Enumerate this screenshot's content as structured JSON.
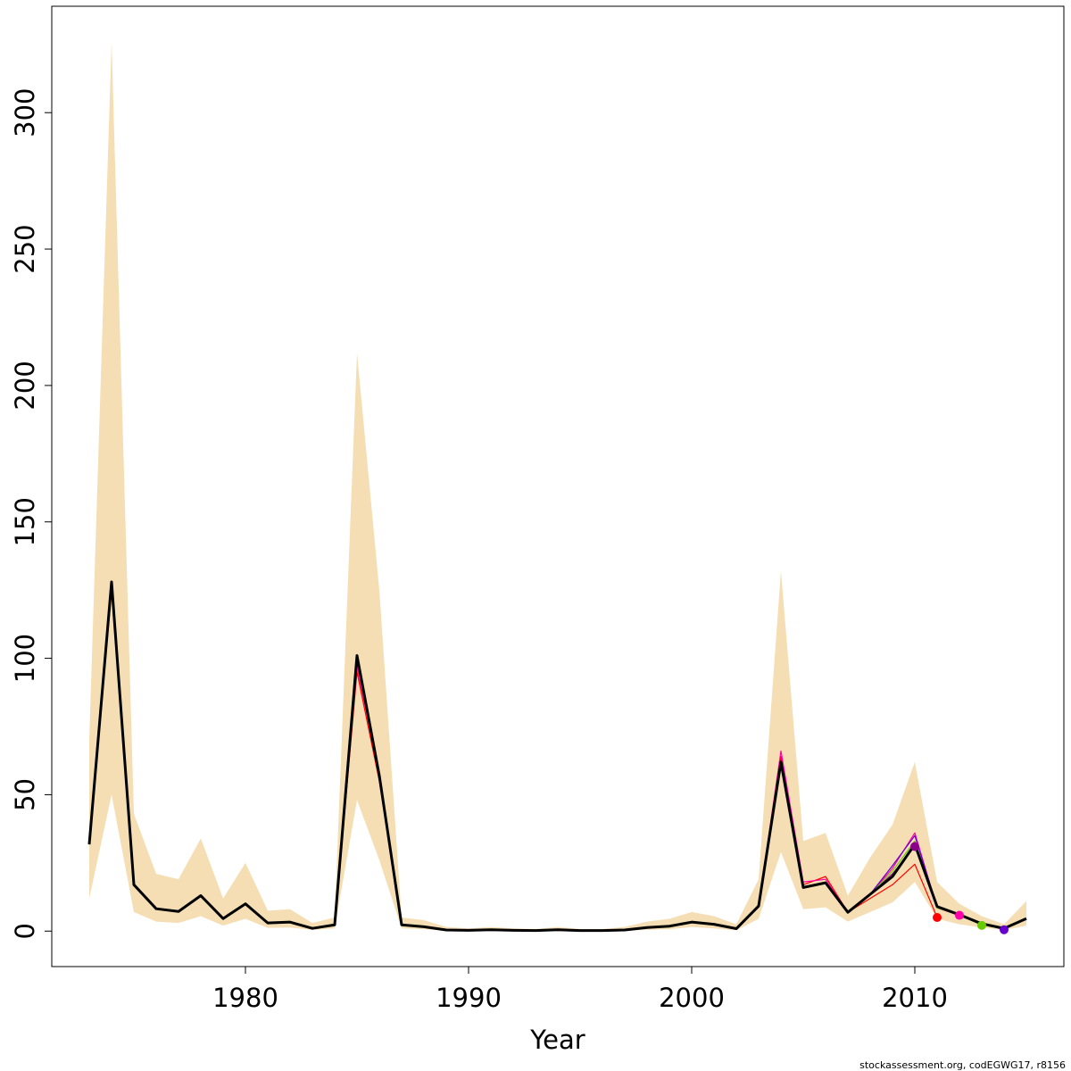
{
  "chart_data": {
    "type": "line",
    "x_label": "Year",
    "footer": "stockassessment.org, codEGWG17, r8156",
    "x": [
      1973,
      1974,
      1975,
      1976,
      1977,
      1978,
      1979,
      1980,
      1981,
      1982,
      1983,
      1984,
      1985,
      1986,
      1987,
      1988,
      1989,
      1990,
      1991,
      1992,
      1993,
      1994,
      1995,
      1996,
      1997,
      1998,
      1999,
      2000,
      2001,
      2002,
      2003,
      2004,
      2005,
      2006,
      2007,
      2008,
      2009,
      2010,
      2011,
      2012,
      2013,
      2014,
      2015
    ],
    "band": {
      "color": "#f5deb3",
      "upper": [
        70,
        326,
        43,
        21,
        19,
        34,
        12,
        25,
        7.5,
        8,
        3,
        5,
        212,
        125,
        5,
        4,
        1.5,
        1,
        1.5,
        1,
        0.8,
        1.5,
        0.8,
        0.8,
        1.5,
        3.5,
        4.5,
        7,
        5.5,
        2.5,
        19,
        132,
        33,
        36,
        13,
        27,
        39,
        62,
        18,
        10,
        5.5,
        2.5,
        11
      ],
      "lower": [
        12,
        50,
        7,
        3.5,
        3,
        5.5,
        2,
        4.5,
        1.2,
        1.3,
        0.4,
        1,
        48,
        26,
        1,
        0.7,
        0.1,
        0.1,
        0.2,
        0.1,
        0.1,
        0.2,
        0.1,
        0.1,
        0.1,
        0.5,
        0.7,
        1.5,
        1,
        0.3,
        4.5,
        29,
        8,
        8.7,
        3.5,
        7,
        10.5,
        18,
        4.5,
        2.5,
        1.3,
        0.4,
        2
      ]
    },
    "series": [
      {
        "color": "#8b008b",
        "width": 1.2,
        "end_point": true,
        "values": [
          31.8,
          128,
          17,
          8.2,
          7.2,
          13,
          4.6,
          10,
          3,
          3.3,
          1,
          2.3,
          98,
          57,
          2.3,
          1.6,
          0.4,
          0.3,
          0.5,
          0.3,
          0.2,
          0.5,
          0.2,
          0.2,
          0.4,
          1.3,
          1.8,
          3.3,
          2.5,
          0.9,
          9.2,
          63,
          16,
          17.7,
          6.9,
          13.5,
          21,
          31,
          null,
          null,
          null,
          null,
          null
        ]
      },
      {
        "color": "#ff0000",
        "width": 1.2,
        "end_point": true,
        "values": [
          31.8,
          125,
          17,
          8.2,
          7.2,
          13,
          4.6,
          10,
          3,
          3.3,
          1,
          2.3,
          95,
          55,
          2.3,
          1.6,
          0.4,
          0.3,
          0.5,
          0.3,
          0.2,
          0.5,
          0.2,
          0.2,
          0.4,
          1.3,
          1.8,
          3.3,
          2.5,
          0.9,
          9.2,
          64,
          17,
          20,
          6.9,
          12,
          17,
          24.5,
          5,
          null,
          null,
          null,
          null
        ]
      },
      {
        "color": "#ff00aa",
        "width": 1.2,
        "end_point": true,
        "values": [
          31.8,
          126,
          17,
          8.2,
          7.2,
          13,
          4.6,
          10,
          3,
          3.3,
          1,
          2.3,
          97,
          57,
          2.3,
          1.6,
          0.4,
          0.3,
          0.5,
          0.3,
          0.2,
          0.5,
          0.2,
          0.2,
          0.4,
          1.3,
          1.8,
          3.3,
          2.5,
          0.9,
          9.2,
          66,
          18,
          19,
          6.9,
          13.5,
          23,
          36,
          8.5,
          5.8,
          null,
          null,
          null
        ]
      },
      {
        "color": "#66cc00",
        "width": 1.2,
        "end_point": true,
        "values": [
          31.8,
          128,
          17,
          8.2,
          7.2,
          13,
          4.6,
          10,
          3,
          3.3,
          1,
          2.3,
          100,
          57,
          2.3,
          1.6,
          0.4,
          0.3,
          0.5,
          0.3,
          0.2,
          0.5,
          0.2,
          0.2,
          0.4,
          1.3,
          1.8,
          3.3,
          2.5,
          0.9,
          9.2,
          61,
          16,
          17.7,
          6.9,
          13.5,
          22,
          33,
          8.5,
          6,
          2.1,
          null,
          null
        ]
      },
      {
        "color": "#6600cc",
        "width": 1.2,
        "end_point": true,
        "values": [
          31.8,
          128,
          17,
          8.2,
          7.2,
          13,
          4.6,
          10,
          3,
          3.3,
          1,
          2.3,
          101,
          57,
          2.3,
          1.6,
          0.4,
          0.3,
          0.5,
          0.3,
          0.2,
          0.5,
          0.2,
          0.2,
          0.4,
          1.3,
          1.8,
          3.3,
          2.5,
          0.9,
          9.2,
          62,
          16,
          17.7,
          6.9,
          13.5,
          24,
          35,
          9,
          6,
          2.8,
          0.5,
          null
        ]
      },
      {
        "color": "#000000",
        "width": 3,
        "end_point": false,
        "values": [
          31.8,
          128,
          17,
          8.2,
          7.2,
          13,
          4.6,
          10,
          3,
          3.3,
          1,
          2.3,
          101,
          57,
          2.3,
          1.6,
          0.4,
          0.3,
          0.5,
          0.3,
          0.2,
          0.5,
          0.2,
          0.2,
          0.4,
          1.3,
          1.8,
          3.3,
          2.5,
          0.9,
          9.2,
          62,
          16,
          17.7,
          6.9,
          13.5,
          20,
          31.8,
          9,
          6,
          2.7,
          1,
          4.6
        ]
      }
    ],
    "xlim": [
      1971.32,
      2016.68
    ],
    "xticks": [
      1980,
      1990,
      2000,
      2010
    ],
    "ylim": [
      -13,
      339
    ],
    "yticks": [
      0,
      50,
      100,
      150,
      200,
      250,
      300
    ]
  }
}
